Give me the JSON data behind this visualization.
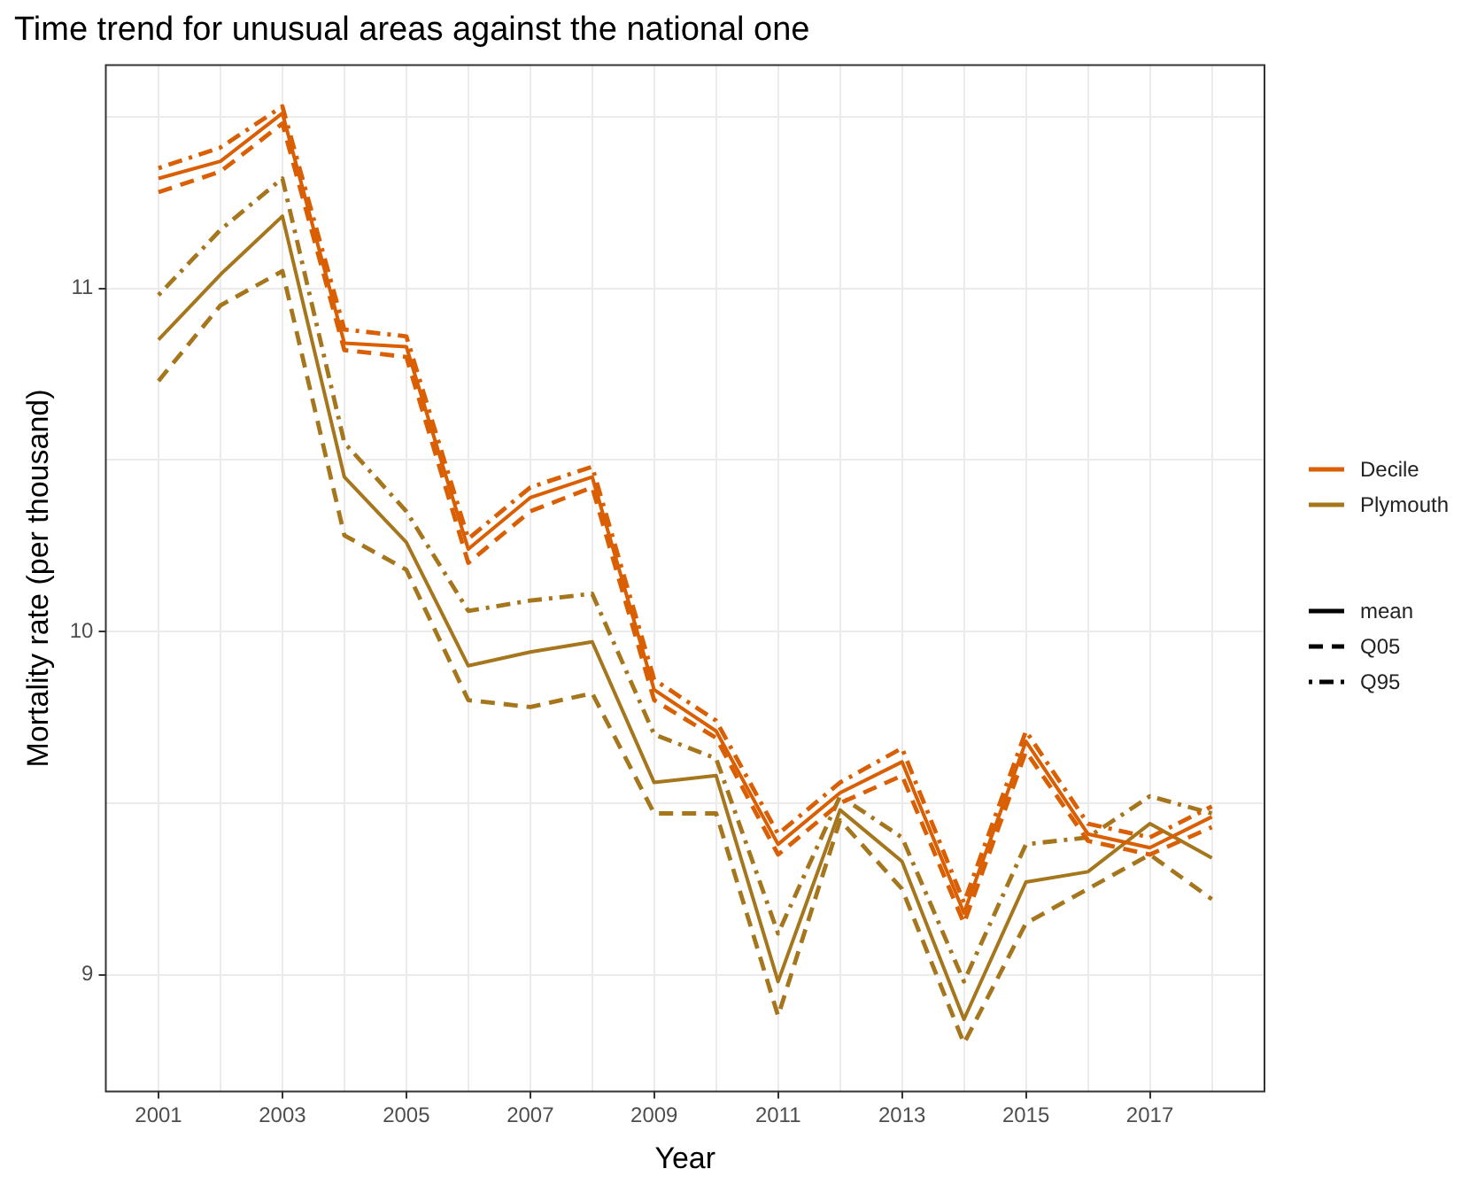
{
  "chart_data": {
    "type": "line",
    "title": "Time trend for unusual areas against the national one",
    "xlabel": "Year",
    "ylabel": "Mortality rate (per thousand)",
    "x": [
      2001,
      2002,
      2003,
      2004,
      2005,
      2006,
      2007,
      2008,
      2009,
      2010,
      2011,
      2012,
      2013,
      2014,
      2015,
      2016,
      2017,
      2018
    ],
    "series": [
      {
        "name": "Decile",
        "color": "#d95f02",
        "line_style": "solid",
        "values": [
          11.32,
          11.37,
          11.51,
          10.84,
          10.83,
          10.24,
          10.39,
          10.45,
          9.83,
          9.71,
          9.38,
          9.53,
          9.62,
          9.18,
          9.68,
          9.41,
          9.37,
          9.46
        ]
      },
      {
        "color": "#d95f02",
        "line_style": "dashed",
        "values": [
          11.28,
          11.34,
          11.48,
          10.82,
          10.8,
          10.2,
          10.35,
          10.42,
          9.8,
          9.69,
          9.35,
          9.5,
          9.58,
          9.15,
          9.65,
          9.39,
          9.35,
          9.43
        ]
      },
      {
        "color": "#d95f02",
        "line_style": "dotted",
        "values": [
          11.35,
          11.41,
          11.53,
          10.88,
          10.86,
          10.27,
          10.42,
          10.48,
          9.86,
          9.74,
          9.41,
          9.56,
          9.66,
          9.21,
          9.71,
          9.44,
          9.4,
          9.49
        ]
      },
      {
        "name": "Plymouth",
        "color": "#a6761d",
        "line_style": "solid",
        "values": [
          10.85,
          11.04,
          11.21,
          10.45,
          10.26,
          9.9,
          9.94,
          9.97,
          9.56,
          9.58,
          8.98,
          9.48,
          9.33,
          8.87,
          9.27,
          9.3,
          9.44,
          9.34
        ]
      },
      {
        "color": "#a6761d",
        "line_style": "dashed",
        "values": [
          10.73,
          10.95,
          11.05,
          10.28,
          10.18,
          9.8,
          9.78,
          9.82,
          9.47,
          9.47,
          8.88,
          9.45,
          9.25,
          8.8,
          9.15,
          9.25,
          9.35,
          9.22
        ]
      },
      {
        "color": "#a6761d",
        "line_style": "dotted",
        "values": [
          10.98,
          11.17,
          11.32,
          10.55,
          10.35,
          10.06,
          10.09,
          10.11,
          9.7,
          9.63,
          9.12,
          9.52,
          9.4,
          8.98,
          9.38,
          9.4,
          9.52,
          9.47
        ]
      }
    ],
    "annotations": [
      "mean",
      "Q05",
      "Q95"
    ],
    "xlim": [
      2000.15,
      2018.85
    ],
    "xticks": [
      2001,
      {
        "value": 2002,
        "label": null
      },
      2003,
      {
        "value": 2004,
        "label": null
      },
      2005,
      {
        "value": 2006,
        "label": null
      },
      2007,
      {
        "value": 2008,
        "label": null
      },
      2009,
      {
        "value": 2010,
        "label": null
      },
      2011,
      {
        "value": 2012,
        "label": null
      },
      2013,
      {
        "value": 2014,
        "label": null
      },
      2015,
      {
        "value": 2016,
        "label": null
      },
      2017,
      {
        "value": 2018,
        "label": null
      }
    ],
    "ylim": [
      8.66,
      11.65
    ],
    "yticks": [
      9,
      {
        "value": 9.5,
        "label": null
      },
      10,
      {
        "value": 10.5,
        "label": null
      },
      11,
      {
        "value": 11.5,
        "label": null
      }
    ],
    "grid": true,
    "legend": "right"
  }
}
